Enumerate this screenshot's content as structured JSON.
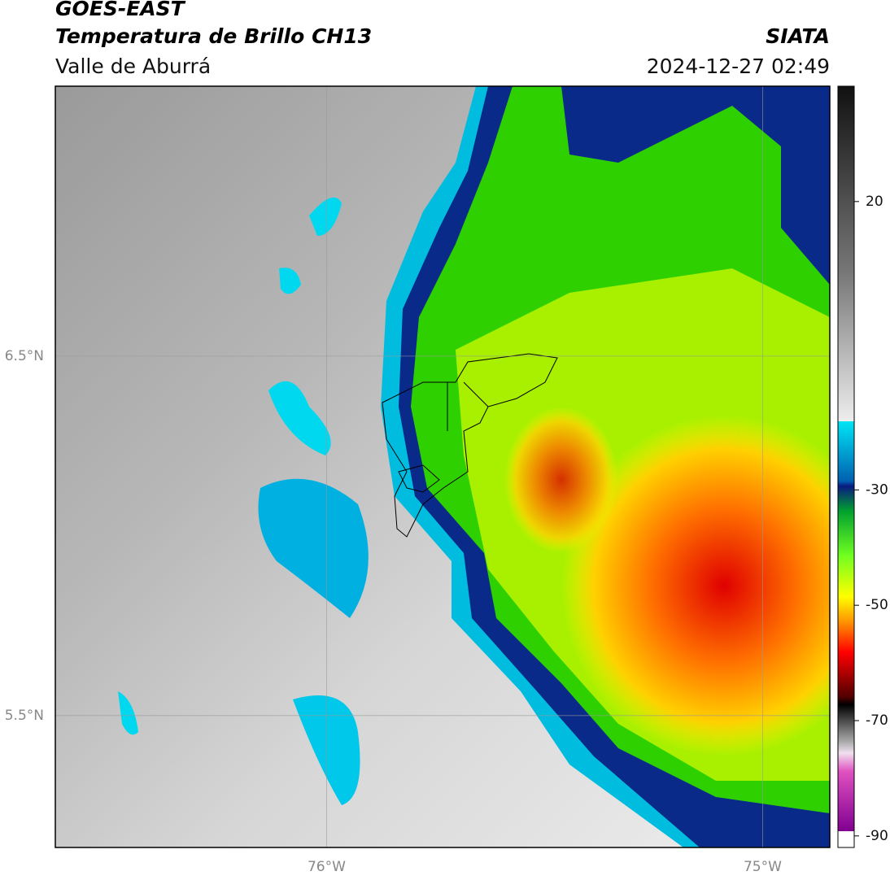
{
  "header": {
    "title": "GOES-EAST",
    "subtitle": "Temperatura de Brillo CH13",
    "region": "Valle de Aburrá",
    "source": "SIATA",
    "datetime": "2024-12-27 02:49"
  },
  "map": {
    "lonlim": [
      -76.622,
      -74.846
    ],
    "latlim": [
      5.133,
      7.251
    ],
    "lonticks": [
      {
        "value": -76,
        "label": "76°W"
      },
      {
        "value": -75,
        "label": "75°W"
      }
    ],
    "latticks": [
      {
        "value": 6.5,
        "label": "6.5°N"
      },
      {
        "value": 5.5,
        "label": "5.5°N"
      }
    ],
    "grid": true
  },
  "colorbar": {
    "lim": [
      -92,
      40
    ],
    "ticks": [
      20,
      -30,
      -50,
      -70,
      -90
    ]
  }
}
